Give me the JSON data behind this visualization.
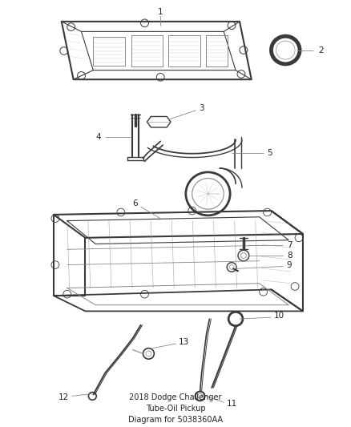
{
  "title": "2018 Dodge Challenger\nTube-Oil Pickup\nDiagram for 5038360AA",
  "background_color": "#ffffff",
  "fig_width": 4.38,
  "fig_height": 5.33,
  "dpi": 100,
  "line_color": "#3a3a3a",
  "light_line_color": "#888888",
  "text_color": "#222222",
  "leader_color": "#888888",
  "font_size": 7.5,
  "title_font_size": 7.0
}
